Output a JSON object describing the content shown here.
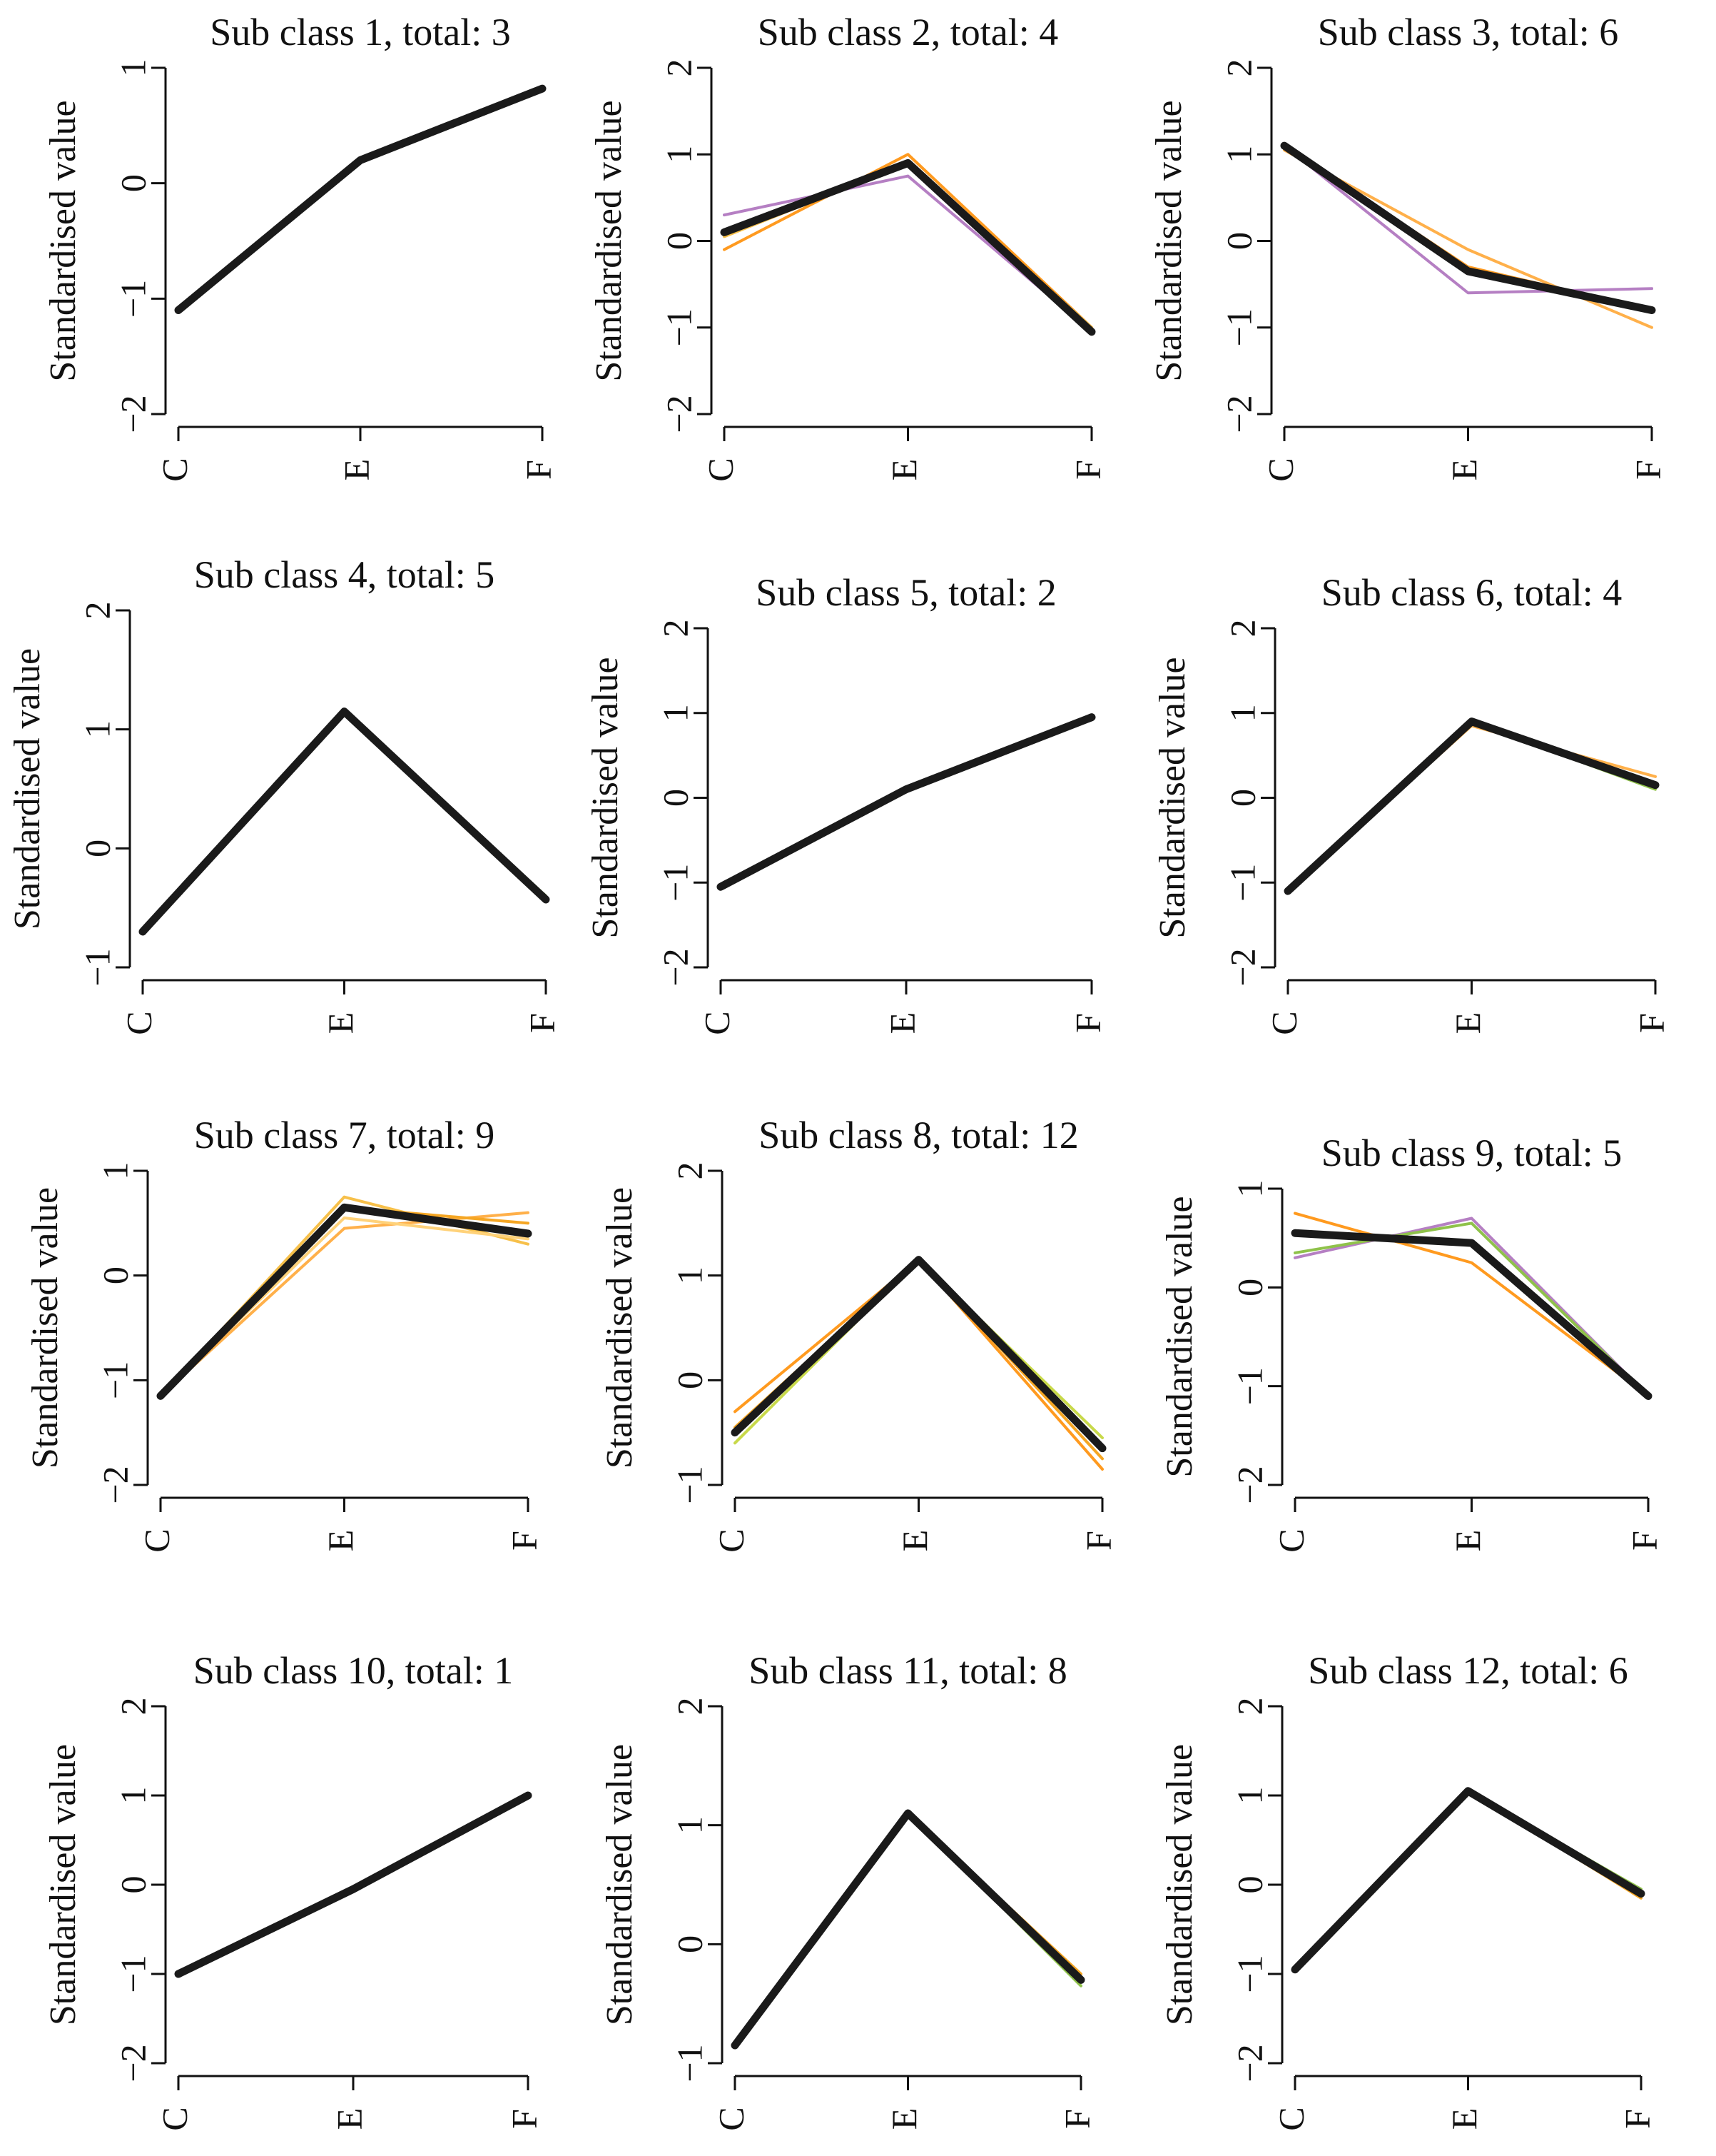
{
  "figure": {
    "background": "#ffffff"
  },
  "chart_data": [
    {
      "type": "line",
      "title": "Sub class 1, total: 3",
      "ylabel": "Standardised value",
      "categories": [
        "C",
        "E",
        "F"
      ],
      "ylim": [
        -2,
        1
      ],
      "yticks": [
        "−2",
        "−1",
        "0",
        "1"
      ],
      "members": [
        {
          "color": "#f5a623",
          "values": [
            -1.1,
            0.22,
            0.82
          ]
        },
        {
          "color": "#b57fc3",
          "values": [
            -1.1,
            0.2,
            0.82
          ]
        }
      ],
      "center": {
        "color": "#1a1a1a",
        "values": [
          -1.1,
          0.2,
          0.82
        ]
      }
    },
    {
      "type": "line",
      "title": "Sub class 2, total: 4",
      "ylabel": "Standardised value",
      "categories": [
        "C",
        "E",
        "F"
      ],
      "ylim": [
        -2,
        2
      ],
      "yticks": [
        "−2",
        "−1",
        "0",
        "1",
        "2"
      ],
      "members": [
        {
          "color": "#ff9a1f",
          "values": [
            -0.1,
            1.0,
            -1.0
          ]
        },
        {
          "color": "#b57fc3",
          "values": [
            0.3,
            0.75,
            -1.05
          ]
        },
        {
          "color": "#f7c04a",
          "values": [
            0.05,
            0.9,
            -1.0
          ]
        }
      ],
      "center": {
        "color": "#1a1a1a",
        "values": [
          0.1,
          0.9,
          -1.05
        ]
      }
    },
    {
      "type": "line",
      "title": "Sub class 3, total: 6",
      "ylabel": "Standardised value",
      "categories": [
        "C",
        "E",
        "F"
      ],
      "ylim": [
        -2,
        2
      ],
      "yticks": [
        "−2",
        "−1",
        "0",
        "1",
        "2"
      ],
      "members": [
        {
          "color": "#ffb04a",
          "values": [
            1.05,
            -0.1,
            -1.0
          ]
        },
        {
          "color": "#b57fc3",
          "values": [
            1.1,
            -0.6,
            -0.55
          ]
        },
        {
          "color": "#ff9a1f",
          "values": [
            1.1,
            -0.3,
            -0.8
          ]
        }
      ],
      "center": {
        "color": "#1a1a1a",
        "values": [
          1.1,
          -0.35,
          -0.8
        ]
      }
    },
    {
      "type": "line",
      "title": "Sub class 4, total: 5",
      "ylabel": "Standardised value",
      "categories": [
        "C",
        "E",
        "F"
      ],
      "ylim": [
        -1,
        2
      ],
      "yticks": [
        "−1",
        "0",
        "1",
        "2"
      ],
      "members": [
        {
          "color": "#8fc24a",
          "values": [
            -0.7,
            1.15,
            -0.4
          ]
        },
        {
          "color": "#f5a623",
          "values": [
            -0.7,
            1.15,
            -0.45
          ]
        }
      ],
      "center": {
        "color": "#1a1a1a",
        "values": [
          -0.7,
          1.15,
          -0.43
        ]
      }
    },
    {
      "type": "line",
      "title": "Sub class 5, total: 2",
      "ylabel": "Standardised value",
      "categories": [
        "C",
        "E",
        "F"
      ],
      "ylim": [
        -2,
        2
      ],
      "yticks": [
        "−2",
        "−1",
        "0",
        "1",
        "2"
      ],
      "members": [
        {
          "color": "#f5a623",
          "values": [
            -1.05,
            0.1,
            0.95
          ]
        }
      ],
      "center": {
        "color": "#1a1a1a",
        "values": [
          -1.05,
          0.1,
          0.95
        ]
      }
    },
    {
      "type": "line",
      "title": "Sub class 6, total: 4",
      "ylabel": "Standardised value",
      "categories": [
        "C",
        "E",
        "F"
      ],
      "ylim": [
        -2,
        2
      ],
      "yticks": [
        "−2",
        "−1",
        "0",
        "1",
        "2"
      ],
      "members": [
        {
          "color": "#ffb04a",
          "values": [
            -1.1,
            0.85,
            0.25
          ]
        },
        {
          "color": "#8fc24a",
          "values": [
            -1.1,
            0.9,
            0.1
          ]
        }
      ],
      "center": {
        "color": "#1a1a1a",
        "values": [
          -1.1,
          0.9,
          0.15
        ]
      }
    },
    {
      "type": "line",
      "title": "Sub class 7, total: 9",
      "ylabel": "Standardised value",
      "categories": [
        "C",
        "E",
        "F"
      ],
      "ylim": [
        -2,
        1
      ],
      "yticks": [
        "−2",
        "−1",
        "0",
        "1"
      ],
      "members": [
        {
          "color": "#f7c04a",
          "values": [
            -1.15,
            0.75,
            0.3
          ]
        },
        {
          "color": "#ffb04a",
          "values": [
            -1.15,
            0.45,
            0.6
          ]
        },
        {
          "color": "#f5a623",
          "values": [
            -1.15,
            0.65,
            0.5
          ]
        },
        {
          "color": "#ffd27a",
          "values": [
            -1.15,
            0.55,
            0.35
          ]
        }
      ],
      "center": {
        "color": "#1a1a1a",
        "values": [
          -1.15,
          0.65,
          0.4
        ]
      }
    },
    {
      "type": "line",
      "title": "Sub class 8, total: 12",
      "ylabel": "Standardised value",
      "categories": [
        "C",
        "E",
        "F"
      ],
      "ylim": [
        -1,
        2
      ],
      "yticks": [
        "−1",
        "0",
        "1",
        "2"
      ],
      "members": [
        {
          "color": "#ff9a1f",
          "values": [
            -0.3,
            1.15,
            -0.85
          ]
        },
        {
          "color": "#c8d94a",
          "values": [
            -0.6,
            1.15,
            -0.55
          ]
        },
        {
          "color": "#f5a623",
          "values": [
            -0.45,
            1.15,
            -0.75
          ]
        }
      ],
      "center": {
        "color": "#1a1a1a",
        "values": [
          -0.5,
          1.15,
          -0.65
        ]
      }
    },
    {
      "type": "line",
      "title": "Sub class 9, total: 5",
      "ylabel": "Standardised value",
      "categories": [
        "C",
        "E",
        "F"
      ],
      "ylim": [
        -2,
        1
      ],
      "yticks": [
        "−2",
        "−1",
        "0",
        "1"
      ],
      "members": [
        {
          "color": "#ff9a1f",
          "values": [
            0.75,
            0.25,
            -1.1
          ]
        },
        {
          "color": "#b57fc3",
          "values": [
            0.3,
            0.7,
            -1.1
          ]
        },
        {
          "color": "#8fc24a",
          "values": [
            0.35,
            0.65,
            -1.1
          ]
        }
      ],
      "center": {
        "color": "#1a1a1a",
        "values": [
          0.55,
          0.45,
          -1.1
        ]
      }
    },
    {
      "type": "line",
      "title": "Sub class 10, total: 1",
      "ylabel": "Standardised value",
      "categories": [
        "C",
        "E",
        "F"
      ],
      "ylim": [
        -2,
        2
      ],
      "yticks": [
        "−2",
        "−1",
        "0",
        "1",
        "2"
      ],
      "members": [],
      "center": {
        "color": "#1a1a1a",
        "values": [
          -1.0,
          -0.05,
          1.0
        ]
      }
    },
    {
      "type": "line",
      "title": "Sub class 11, total: 8",
      "ylabel": "Standardised value",
      "categories": [
        "C",
        "E",
        "F"
      ],
      "ylim": [
        -1,
        2
      ],
      "yticks": [
        "−1",
        "0",
        "1",
        "2"
      ],
      "members": [
        {
          "color": "#8fc24a",
          "values": [
            -0.85,
            1.1,
            -0.35
          ]
        },
        {
          "color": "#f5a623",
          "values": [
            -0.85,
            1.1,
            -0.25
          ]
        }
      ],
      "center": {
        "color": "#1a1a1a",
        "values": [
          -0.85,
          1.1,
          -0.3
        ]
      }
    },
    {
      "type": "line",
      "title": "Sub class 12, total: 6",
      "ylabel": "Standardised value",
      "categories": [
        "C",
        "E",
        "F"
      ],
      "ylim": [
        -2,
        2
      ],
      "yticks": [
        "−2",
        "−1",
        "0",
        "1",
        "2"
      ],
      "members": [
        {
          "color": "#8fc24a",
          "values": [
            -0.95,
            1.05,
            -0.05
          ]
        },
        {
          "color": "#f5a623",
          "values": [
            -0.95,
            1.05,
            -0.15
          ]
        }
      ],
      "center": {
        "color": "#1a1a1a",
        "values": [
          -0.95,
          1.05,
          -0.1
        ]
      }
    }
  ]
}
